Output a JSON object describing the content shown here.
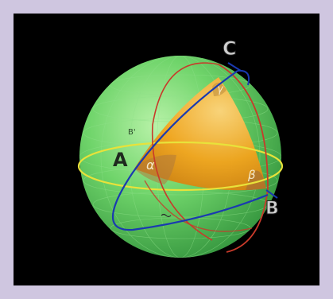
{
  "figure": {
    "vertex_labels": {
      "a": "A",
      "b": "B",
      "c": "C"
    },
    "angle_labels": {
      "alpha": "α",
      "beta": "β",
      "gamma": "γ"
    },
    "small_labels": {
      "b_prime": "B'"
    },
    "colors": {
      "background_frame": "#cfc6e0",
      "canvas": "#000000",
      "sphere": "#5ecf5e",
      "triangle_fill": "#f0a21a",
      "equator": "#e8e23a",
      "great_circle_blue": "#1a3ab0",
      "great_circle_red": "#c83a2a",
      "label_dark": "#2a2a2a",
      "label_light": "#cfcfcf"
    }
  }
}
